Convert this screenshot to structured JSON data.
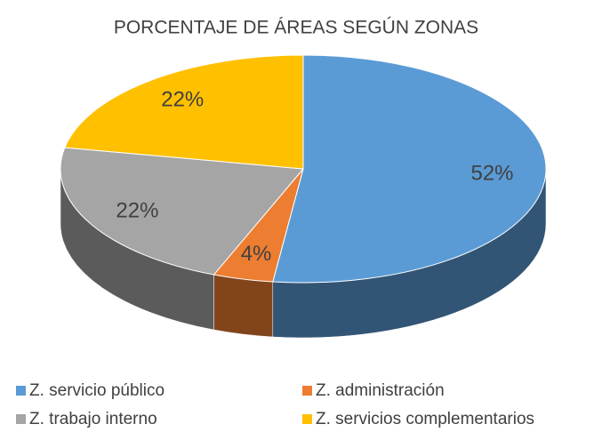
{
  "chart_data": {
    "type": "pie",
    "title": "PORCENTAJE DE ÁREAS SEGÚN ZONAS",
    "categories": [
      "Z. servicio público",
      "Z. administración",
      "Z. trabajo interno",
      "Z. servicios complementarios"
    ],
    "values": [
      52,
      4,
      22,
      22
    ],
    "value_labels": [
      "52%",
      "4%",
      "22%",
      "22%"
    ],
    "colors": [
      "#5b9bd5",
      "#ed7d31",
      "#a5a5a5",
      "#ffc000"
    ],
    "legend": "bottom"
  }
}
